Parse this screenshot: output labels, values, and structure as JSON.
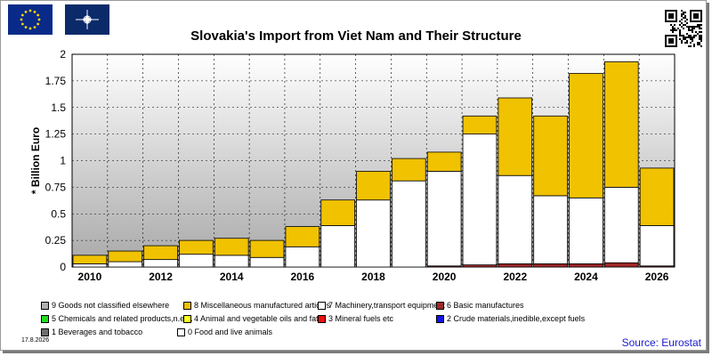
{
  "title": "Slovakia's Import from Viet Nam and Their Structure",
  "source": "Source: Eurostat",
  "date": "17.8.2026",
  "logos": {
    "left": "eu-flag-icon",
    "right": "nato-flag-icon",
    "qr": "qr-code-icon"
  },
  "chart_data": {
    "type": "bar",
    "stacked": true,
    "title": "Slovakia's Import from Viet Nam and Their Structure",
    "ylabel": "* Billion Euro",
    "xlabel": "",
    "ylim": [
      0,
      2
    ],
    "yticks": [
      "0",
      "0.25",
      "0.5",
      "0.75",
      "1",
      "1.25",
      "1.5",
      "1.75",
      "2"
    ],
    "ytick_values": [
      0,
      0.25,
      0.5,
      0.75,
      1,
      1.25,
      1.5,
      1.75,
      2
    ],
    "categories": [
      "2010",
      "2011",
      "2012",
      "2013",
      "2014",
      "2015",
      "2016",
      "2017",
      "2018",
      "2019",
      "2020",
      "2021",
      "2022",
      "2023",
      "2024",
      "2025",
      "2026"
    ],
    "xtick_labels": [
      "2010",
      "",
      "2012",
      "",
      "2014",
      "",
      "2016",
      "",
      "2018",
      "",
      "2020",
      "",
      "2022",
      "",
      "2024",
      "",
      "2026"
    ],
    "grid": true,
    "legend_position": "bottom",
    "series": [
      {
        "name": "0 Food and live animals",
        "color": "#ffffff",
        "values": [
          0,
          0,
          0,
          0,
          0,
          0,
          0,
          0,
          0,
          0,
          0,
          0,
          0,
          0,
          0,
          0,
          0
        ]
      },
      {
        "name": "1 Beverages and tobacco",
        "color": "#6e6e6e",
        "values": [
          0,
          0,
          0,
          0,
          0,
          0,
          0,
          0,
          0,
          0,
          0,
          0,
          0,
          0,
          0,
          0,
          0
        ]
      },
      {
        "name": "2 Crude materials,inedible,except fuels",
        "color": "#1414e6",
        "values": [
          0,
          0,
          0,
          0,
          0,
          0,
          0,
          0,
          0,
          0,
          0,
          0,
          0,
          0,
          0,
          0,
          0
        ]
      },
      {
        "name": "3 Mineral fuels etc",
        "color": "#ee1111",
        "values": [
          0,
          0,
          0,
          0,
          0,
          0,
          0,
          0,
          0,
          0,
          0,
          0,
          0,
          0,
          0,
          0,
          0
        ]
      },
      {
        "name": "4 Animal and vegetable oils and fats",
        "color": "#ffff22",
        "values": [
          0,
          0,
          0,
          0,
          0,
          0,
          0,
          0,
          0,
          0,
          0,
          0,
          0,
          0,
          0,
          0,
          0
        ]
      },
      {
        "name": "5 Chemicals and related products,n.e.s.",
        "color": "#22dd22",
        "values": [
          0,
          0,
          0,
          0,
          0,
          0,
          0,
          0,
          0,
          0,
          0,
          0,
          0,
          0,
          0,
          0,
          0
        ]
      },
      {
        "name": "6 Basic manufactures",
        "color": "#a02828",
        "values": [
          0,
          0,
          0,
          0,
          0,
          0,
          0,
          0,
          0,
          0,
          0.01,
          0.02,
          0.03,
          0.03,
          0.03,
          0.04,
          0.01
        ]
      },
      {
        "name": "7 Machinery,transport equipment",
        "color": "#ffffff",
        "values": [
          0.03,
          0.05,
          0.07,
          0.12,
          0.11,
          0.09,
          0.19,
          0.39,
          0.63,
          0.81,
          0.89,
          1.23,
          0.83,
          0.64,
          0.62,
          0.71,
          0.38
        ]
      },
      {
        "name": "8 Miscellaneous manufactured articles",
        "color": "#f0c200",
        "values": [
          0.08,
          0.1,
          0.13,
          0.13,
          0.16,
          0.16,
          0.19,
          0.24,
          0.27,
          0.21,
          0.18,
          0.17,
          0.73,
          0.75,
          1.17,
          1.18,
          0.54
        ]
      },
      {
        "name": "9 Goods not classified elsewhere",
        "color": "#b0b0b0",
        "values": [
          0,
          0,
          0,
          0,
          0,
          0,
          0,
          0,
          0,
          0,
          0,
          0,
          0,
          0,
          0,
          0,
          0
        ]
      }
    ],
    "legend": [
      {
        "label": "9 Goods not classified elsewhere",
        "color": "#b0b0b0"
      },
      {
        "label": "8 Miscellaneous manufactured articles",
        "color": "#f0c200"
      },
      {
        "label": "7 Machinery,transport equipment",
        "color": "#ffffff"
      },
      {
        "label": "6 Basic manufactures",
        "color": "#a02828"
      },
      {
        "label": "5 Chemicals and related products,n.e.s.",
        "color": "#22dd22"
      },
      {
        "label": "4 Animal and vegetable oils and fats",
        "color": "#ffff22"
      },
      {
        "label": "3 Mineral fuels etc",
        "color": "#ee1111"
      },
      {
        "label": "2 Crude materials,inedible,except fuels",
        "color": "#1414e6"
      },
      {
        "label": "1 Beverages and tobacco",
        "color": "#6e6e6e"
      },
      {
        "label": "0 Food and live animals",
        "color": "#ffffff"
      }
    ]
  }
}
